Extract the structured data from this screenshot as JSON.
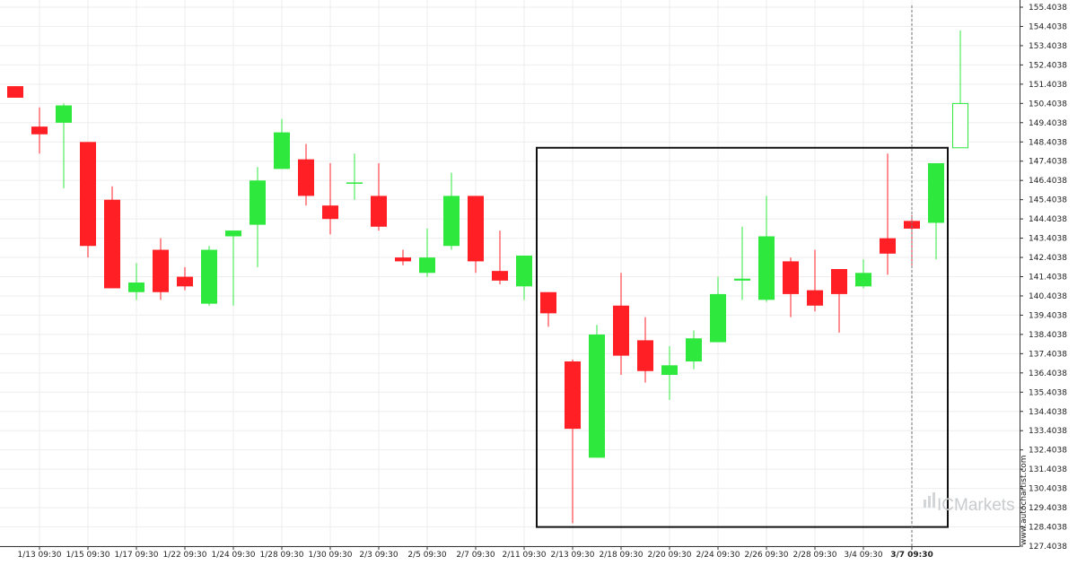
{
  "colors": {
    "bullish": "#2fe83e",
    "bearish": "#ff1f24",
    "pattern_box": "#111111",
    "grid": "#eeeeee",
    "text": "#222222",
    "watermark": "#c9ccce"
  },
  "watermark": {
    "site": "www.autochartist.com",
    "brand": "ICMarkets"
  },
  "chart_data": {
    "type": "candlestick",
    "title": "",
    "xlabel": "",
    "ylabel": "",
    "ylim": [
      127.4038,
      155.4038
    ],
    "y_ticks": [
      "127.4038",
      "128.4038",
      "129.4038",
      "130.4038",
      "131.4038",
      "132.4038",
      "133.4038",
      "134.4038",
      "135.4038",
      "136.4038",
      "137.4038",
      "138.4038",
      "139.4038",
      "140.4038",
      "141.4038",
      "142.4038",
      "143.4038",
      "144.4038",
      "145.4038",
      "146.4038",
      "147.4038",
      "148.4038",
      "149.4038",
      "150.4038",
      "151.4038",
      "152.4038",
      "153.4038",
      "154.4038",
      "155.4038"
    ],
    "x_ticks": [
      "1/13 09:30",
      "1/15 09:30",
      "1/17 09:30",
      "1/22 09:30",
      "1/24 09:30",
      "1/28 09:30",
      "1/30 09:30",
      "2/3 09:30",
      "2/5 09:30",
      "2/7 09:30",
      "2/11 09:30",
      "2/13 09:30",
      "2/18 09:30",
      "2/20 09:30",
      "2/24 09:30",
      "2/26 09:30",
      "2/28 09:30",
      "3/4 09:30",
      "3/7 09:30"
    ],
    "current_tick": "3/7 09:30",
    "candles": [
      {
        "o": 151.3,
        "h": 151.3,
        "l": 150.7,
        "c": 150.7
      },
      {
        "o": 149.2,
        "h": 150.2,
        "l": 147.8,
        "c": 148.8
      },
      {
        "o": 149.4,
        "h": 150.4,
        "l": 146.0,
        "c": 150.3
      },
      {
        "o": 148.4,
        "h": 148.4,
        "l": 142.4,
        "c": 143.0
      },
      {
        "o": 145.4,
        "h": 146.1,
        "l": 140.8,
        "c": 140.8
      },
      {
        "o": 140.6,
        "h": 142.1,
        "l": 140.2,
        "c": 141.1
      },
      {
        "o": 142.8,
        "h": 143.4,
        "l": 140.2,
        "c": 140.6
      },
      {
        "o": 141.4,
        "h": 141.9,
        "l": 140.7,
        "c": 140.9
      },
      {
        "o": 140.0,
        "h": 143.0,
        "l": 139.9,
        "c": 142.8
      },
      {
        "o": 143.5,
        "h": 143.7,
        "l": 139.9,
        "c": 143.8
      },
      {
        "o": 144.1,
        "h": 147.1,
        "l": 141.9,
        "c": 146.4
      },
      {
        "o": 147.0,
        "h": 149.6,
        "l": 147.0,
        "c": 148.9
      },
      {
        "o": 147.5,
        "h": 148.3,
        "l": 145.1,
        "c": 145.6
      },
      {
        "o": 145.1,
        "h": 147.3,
        "l": 143.6,
        "c": 144.4
      },
      {
        "o": 146.3,
        "h": 147.8,
        "l": 145.4,
        "c": 146.3
      },
      {
        "o": 145.6,
        "h": 147.3,
        "l": 143.8,
        "c": 144.0
      },
      {
        "o": 142.4,
        "h": 142.8,
        "l": 142.0,
        "c": 142.2
      },
      {
        "o": 141.6,
        "h": 143.9,
        "l": 141.4,
        "c": 142.4
      },
      {
        "o": 143.0,
        "h": 146.8,
        "l": 142.8,
        "c": 145.6
      },
      {
        "o": 145.6,
        "h": 145.6,
        "l": 141.6,
        "c": 142.2
      },
      {
        "o": 141.7,
        "h": 143.8,
        "l": 141.0,
        "c": 141.2
      },
      {
        "o": 140.9,
        "h": 142.5,
        "l": 140.2,
        "c": 142.5
      },
      {
        "o": 140.6,
        "h": 140.6,
        "l": 138.8,
        "c": 139.5
      },
      {
        "o": 137.0,
        "h": 137.1,
        "l": 128.6,
        "c": 133.5
      },
      {
        "o": 132.0,
        "h": 138.9,
        "l": 132.0,
        "c": 138.4
      },
      {
        "o": 139.9,
        "h": 141.6,
        "l": 136.3,
        "c": 137.3
      },
      {
        "o": 138.1,
        "h": 139.3,
        "l": 135.9,
        "c": 136.5
      },
      {
        "o": 136.3,
        "h": 137.8,
        "l": 135.0,
        "c": 136.8
      },
      {
        "o": 137.0,
        "h": 138.6,
        "l": 136.6,
        "c": 138.2
      },
      {
        "o": 138.0,
        "h": 141.4,
        "l": 138.0,
        "c": 140.5
      },
      {
        "o": 141.2,
        "h": 144.0,
        "l": 140.2,
        "c": 141.3
      },
      {
        "o": 140.2,
        "h": 145.6,
        "l": 140.1,
        "c": 143.5
      },
      {
        "o": 142.2,
        "h": 142.4,
        "l": 139.3,
        "c": 140.5
      },
      {
        "o": 140.7,
        "h": 142.8,
        "l": 139.6,
        "c": 139.9
      },
      {
        "o": 141.8,
        "h": 141.8,
        "l": 138.5,
        "c": 140.5
      },
      {
        "o": 140.9,
        "h": 142.3,
        "l": 140.8,
        "c": 141.6
      },
      {
        "o": 143.4,
        "h": 147.8,
        "l": 141.5,
        "c": 142.6
      },
      {
        "o": 144.3,
        "h": 144.6,
        "l": 142.0,
        "c": 143.9
      },
      {
        "o": 144.2,
        "h": 147.3,
        "l": 142.3,
        "c": 147.3
      },
      {
        "o": 148.1,
        "h": 154.2,
        "l": 148.1,
        "c": 150.4,
        "hollow": true
      }
    ],
    "pattern_box": {
      "start_index": 22,
      "end_index": 38,
      "top": 148.1,
      "bottom": 128.4
    }
  }
}
